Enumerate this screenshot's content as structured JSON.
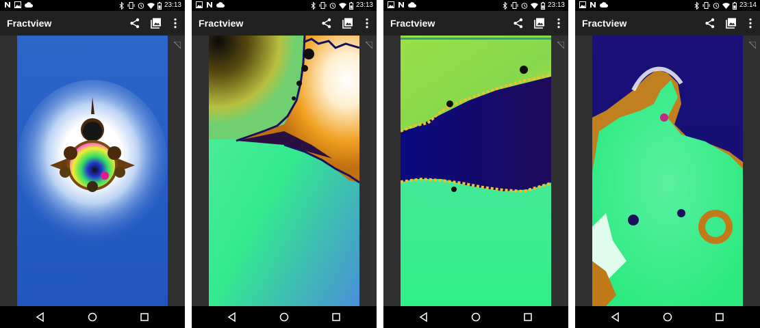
{
  "screens": [
    {
      "status": {
        "time": "23:13"
      },
      "app": {
        "title": "Fractview"
      }
    },
    {
      "status": {
        "time": "23:13"
      },
      "app": {
        "title": "Fractview"
      }
    },
    {
      "status": {
        "time": "23:13"
      },
      "app": {
        "title": "Fractview"
      },
      "render_progress": 0.98
    },
    {
      "status": {
        "time": "23:14"
      },
      "app": {
        "title": "Fractview"
      }
    }
  ],
  "colors": {
    "statusbar": "#000000",
    "appbar": "#212121",
    "background": "#303030",
    "progress": "#2e9e8c"
  },
  "icons": [
    "n-icon",
    "image-icon",
    "cloud-icon",
    "bluetooth-icon",
    "vibrate-icon",
    "alarm-icon",
    "wifi-icon",
    "battery-icon",
    "share-icon",
    "gallery-icon",
    "more-vert-icon",
    "back-icon",
    "home-icon",
    "recents-icon"
  ]
}
